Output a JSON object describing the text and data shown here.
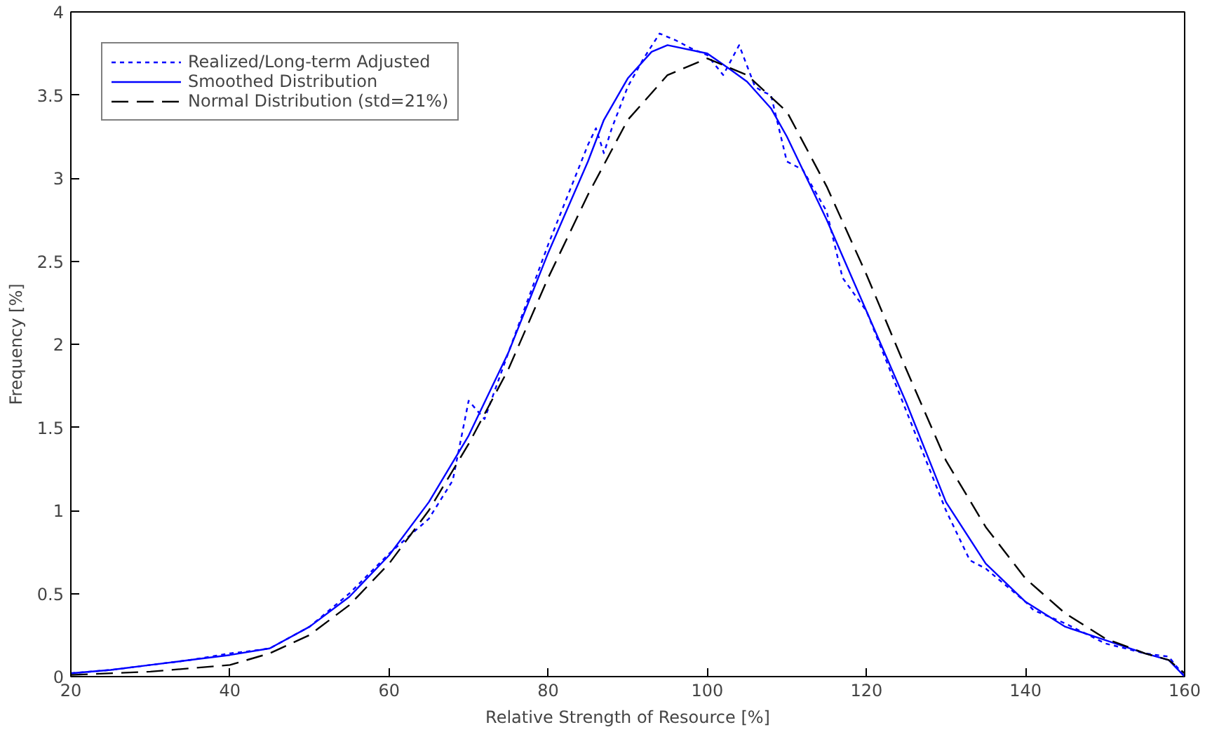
{
  "chart_data": {
    "type": "line",
    "xlabel": "Relative Strength of Resource [%]",
    "ylabel": "Frequency [%]",
    "xlim": [
      20,
      160
    ],
    "ylim": [
      0,
      4
    ],
    "xticks": [
      20,
      40,
      60,
      80,
      100,
      120,
      140,
      160
    ],
    "yticks": [
      0,
      0.5,
      1,
      1.5,
      2,
      2.5,
      3,
      3.5,
      4
    ],
    "grid": false,
    "legend": "top left",
    "series": [
      {
        "name": "Realized/Long-term Adjusted",
        "color": "#0000ff",
        "line_style": "dotted",
        "x": [
          20,
          25,
          30,
          35,
          40,
          42,
          45,
          50,
          55,
          60,
          65,
          68,
          70,
          72,
          75,
          80,
          85,
          86,
          87,
          88,
          90,
          92,
          94,
          96,
          98,
          100,
          101,
          102,
          104,
          106,
          107,
          108,
          110,
          112,
          115,
          117,
          120,
          125,
          130,
          133,
          135,
          140,
          141,
          145,
          150,
          155,
          158,
          160
        ],
        "values": [
          0.02,
          0.04,
          0.07,
          0.1,
          0.14,
          0.15,
          0.17,
          0.3,
          0.5,
          0.74,
          0.95,
          1.18,
          1.66,
          1.55,
          1.95,
          2.6,
          3.2,
          3.3,
          3.15,
          3.3,
          3.55,
          3.72,
          3.87,
          3.83,
          3.78,
          3.74,
          3.68,
          3.62,
          3.8,
          3.55,
          3.52,
          3.5,
          3.1,
          3.05,
          2.8,
          2.4,
          2.2,
          1.6,
          1.0,
          0.7,
          0.65,
          0.45,
          0.4,
          0.32,
          0.2,
          0.14,
          0.12,
          0.0
        ]
      },
      {
        "name": "Smoothed Distribution",
        "color": "#0000ff",
        "line_style": "solid",
        "x": [
          20,
          25,
          30,
          35,
          40,
          45,
          50,
          55,
          60,
          65,
          70,
          75,
          80,
          85,
          87,
          90,
          93,
          95,
          100,
          103,
          105,
          108,
          110,
          113,
          115,
          120,
          125,
          130,
          135,
          140,
          145,
          150,
          155,
          158,
          160
        ],
        "values": [
          0.02,
          0.04,
          0.07,
          0.1,
          0.13,
          0.17,
          0.3,
          0.48,
          0.73,
          1.05,
          1.45,
          1.95,
          2.55,
          3.1,
          3.35,
          3.6,
          3.76,
          3.8,
          3.75,
          3.65,
          3.58,
          3.42,
          3.25,
          2.95,
          2.75,
          2.2,
          1.65,
          1.05,
          0.68,
          0.45,
          0.3,
          0.22,
          0.14,
          0.1,
          0.0
        ]
      },
      {
        "name": "Normal Distribution (std=21%)",
        "color": "#000000",
        "line_style": "dashed",
        "x": [
          20,
          30,
          40,
          45,
          50,
          55,
          60,
          65,
          70,
          75,
          80,
          85,
          90,
          95,
          100,
          105,
          110,
          115,
          120,
          125,
          130,
          135,
          140,
          145,
          150,
          155,
          158,
          160
        ],
        "values": [
          0.01,
          0.03,
          0.07,
          0.14,
          0.25,
          0.43,
          0.68,
          1.0,
          1.4,
          1.85,
          2.4,
          2.9,
          3.35,
          3.62,
          3.72,
          3.62,
          3.4,
          2.95,
          2.42,
          1.85,
          1.3,
          0.9,
          0.59,
          0.38,
          0.23,
          0.14,
          0.1,
          0.02
        ]
      }
    ]
  }
}
